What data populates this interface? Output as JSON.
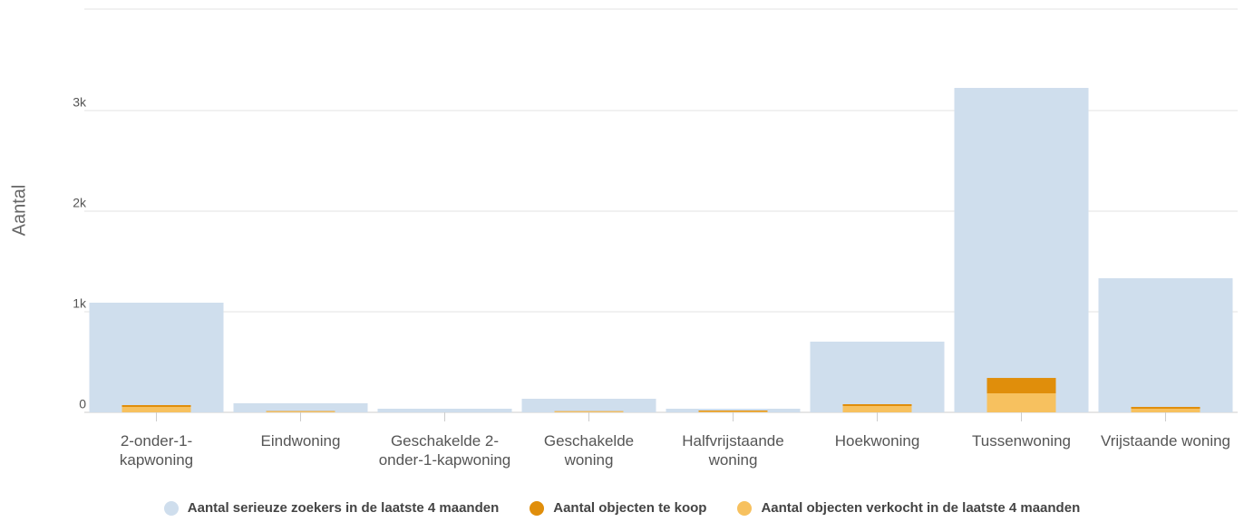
{
  "chart_data": {
    "type": "bar",
    "y_label": "Aantal",
    "categories": [
      "2-onder-1-kapwoning",
      "Eindwoning",
      "Geschakelde 2-onder-1-kapwoning",
      "Geschakelde woning",
      "Halfvrijstaande woning",
      "Hoekwoning",
      "Tussenwoning",
      "Vrijstaande woning"
    ],
    "series": [
      {
        "name": "Aantal serieuze zoekers in de laatste 4 maanden",
        "color": "#cfdeed",
        "values": [
          1090,
          90,
          36,
          135,
          36,
          703,
          3225,
          1333
        ]
      },
      {
        "name": "Aantal objecten te koop",
        "color": "#e08e0b",
        "values": [
          18,
          3,
          0,
          2,
          10,
          18,
          153,
          18
        ]
      },
      {
        "name": "Aantal objecten verkocht in de laatste 4 maanden",
        "color": "#f7c15f",
        "values": [
          54,
          10,
          0,
          10,
          8,
          63,
          189,
          36
        ]
      }
    ],
    "ylim": [
      0,
      4000
    ],
    "yticks": [
      0,
      {
        "value": 1000,
        "label": "1k"
      },
      {
        "value": 2000,
        "label": "2k"
      },
      {
        "value": 3000,
        "label": "3k"
      }
    ],
    "grid": true
  }
}
